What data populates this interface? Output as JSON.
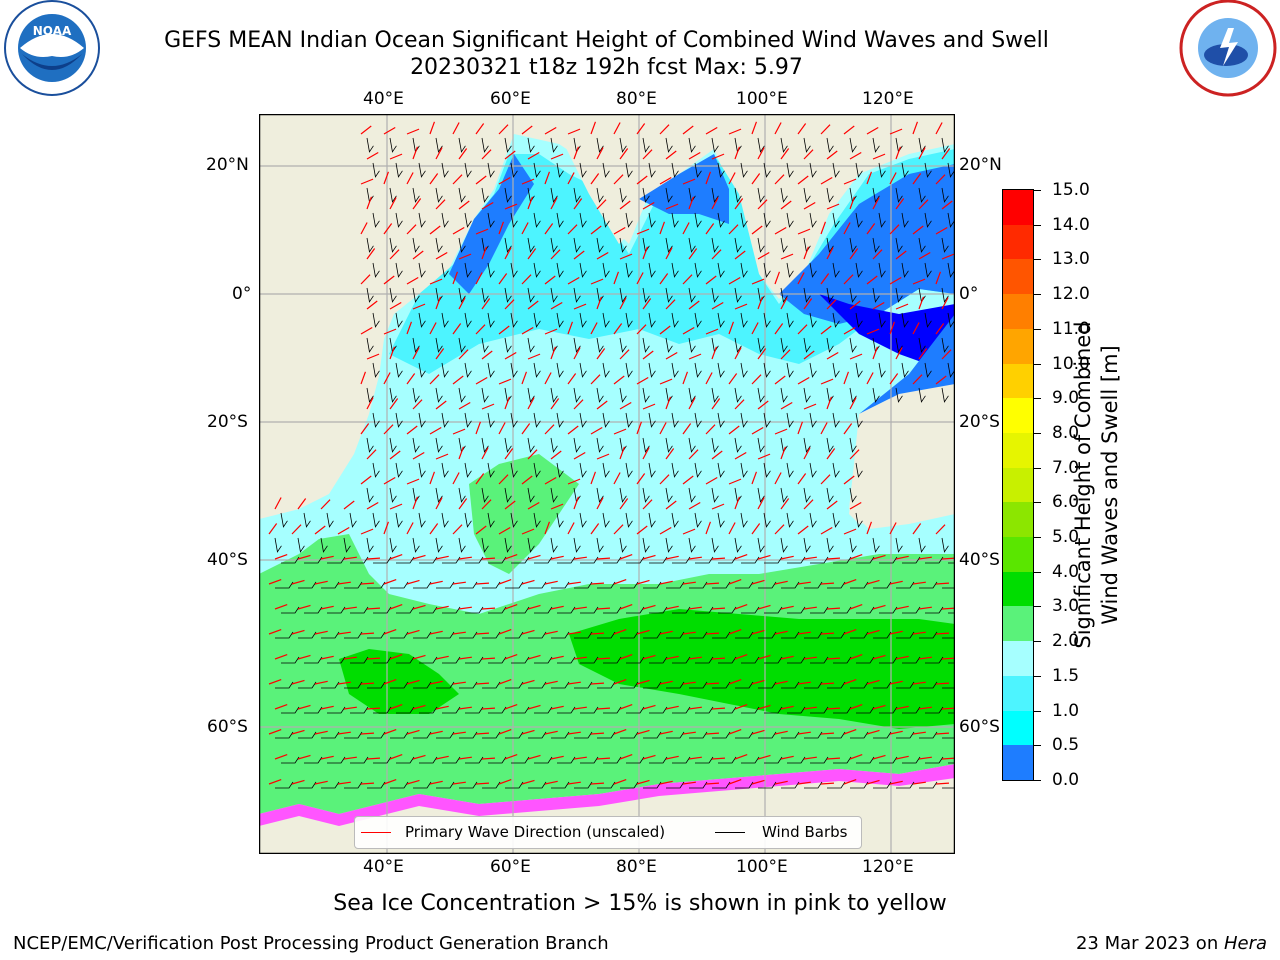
{
  "title": {
    "line1": "GEFS MEAN Indian Ocean Significant Height of Combined Wind Waves and Swell",
    "line2": "20230321 t18z 192h fcst   Max: 5.97"
  },
  "logos": {
    "left": "NOAA",
    "right": "NATIONAL WEATHER SERVICE"
  },
  "axes": {
    "lon_labels": [
      "40°E",
      "60°E",
      "80°E",
      "100°E",
      "120°E"
    ],
    "lat_labels": [
      "20°N",
      "0°",
      "20°S",
      "40°S",
      "60°S"
    ]
  },
  "colorbar": {
    "label_line1": "Significant Height of Combined",
    "label_line2": "Wind Waves and Swell [m]",
    "ticks": [
      "15.0",
      "14.0",
      "13.0",
      "12.0",
      "11.0",
      "10.0",
      "9.0",
      "8.0",
      "7.0",
      "6.0",
      "5.0",
      "4.0",
      "3.0",
      "2.0",
      "1.5",
      "1.0",
      "0.5",
      "0.0"
    ],
    "colors": [
      "#ff0000",
      "#ff2a00",
      "#ff5500",
      "#ff7f00",
      "#ffa500",
      "#ffd000",
      "#ffff00",
      "#e6f500",
      "#c8f000",
      "#8ce600",
      "#5ae600",
      "#00dd00",
      "#5af27a",
      "#a6ffff",
      "#4df4ff",
      "#00ffff",
      "#1e7dff",
      "#0000ff"
    ]
  },
  "legend": {
    "wave": "Primary Wave Direction (unscaled)",
    "barbs": "Wind Barbs",
    "wave_color": "#ff0000",
    "barb_color": "#000000"
  },
  "map_colors": {
    "land": "#efeedd",
    "ocean_low": "#a6ffff",
    "ocean_mid": "#4df4ff",
    "ocean_high": "#5af27a",
    "ocean_top": "#00dd00",
    "coast_dark": "#1e7dff",
    "coast_deep": "#0000ff",
    "ice": "#ff55ff"
  },
  "subtitle": "Sea Ice Concentration > 15% is shown in pink to yellow",
  "footer": {
    "left": "NCEP/EMC/Verification Post Processing Product Generation Branch",
    "right_prefix": "23 Mar 2023 on ",
    "right_host": "Hera"
  }
}
